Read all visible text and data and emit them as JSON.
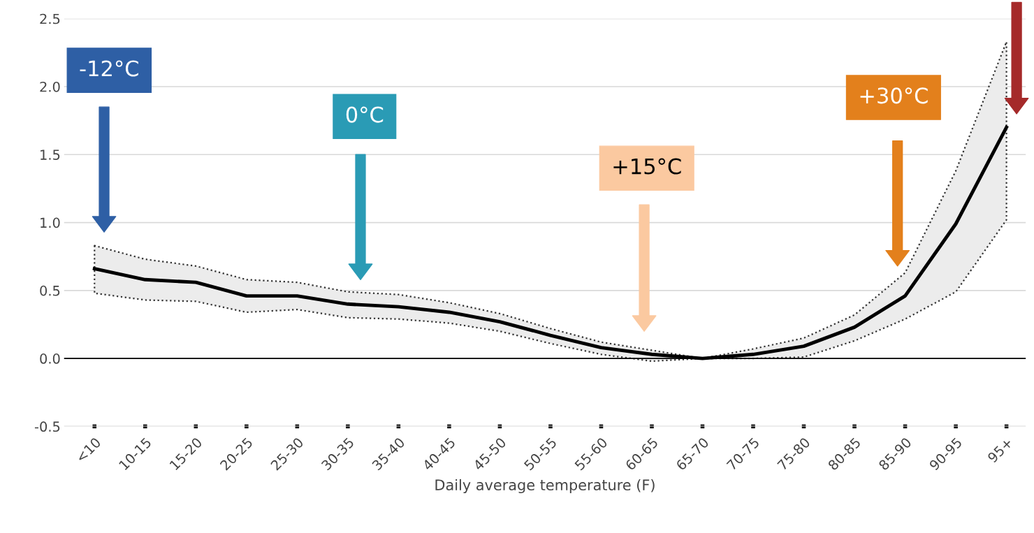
{
  "chart_data": {
    "type": "line",
    "xlabel": "Daily average temperature (F)",
    "categories": [
      "<10",
      "10-15",
      "15-20",
      "20-25",
      "25-30",
      "30-35",
      "35-40",
      "40-45",
      "45-50",
      "50-55",
      "55-60",
      "60-65",
      "65-70",
      "70-75",
      "75-80",
      "80-85",
      "85-90",
      "90-95",
      "95+"
    ],
    "series": [
      {
        "color": "#000000",
        "values": [
          0.66,
          0.58,
          0.56,
          0.46,
          0.46,
          0.4,
          0.38,
          0.34,
          0.27,
          0.17,
          0.08,
          0.03,
          0.0,
          0.03,
          0.09,
          0.23,
          0.46,
          0.99,
          1.7
        ],
        "lower": [
          0.48,
          0.43,
          0.42,
          0.34,
          0.36,
          0.3,
          0.29,
          0.26,
          0.2,
          0.11,
          0.03,
          -0.02,
          0.0,
          0.0,
          0.01,
          0.13,
          0.29,
          0.49,
          1.02
        ],
        "upper": [
          0.83,
          0.73,
          0.68,
          0.58,
          0.56,
          0.49,
          0.47,
          0.41,
          0.33,
          0.22,
          0.12,
          0.06,
          0.0,
          0.07,
          0.15,
          0.32,
          0.63,
          1.38,
          2.33
        ]
      }
    ],
    "ylim": [
      -0.5,
      2.5
    ],
    "yticks": [
      {
        "value": -0.5,
        "label": "-0.5"
      },
      {
        "value": 0,
        "label": "0.0"
      },
      {
        "value": 0.5,
        "label": "0.5"
      },
      {
        "value": 1.0,
        "label": "1.0"
      },
      {
        "value": 1.5,
        "label": "1.5"
      },
      {
        "value": 2.0,
        "label": "2.0"
      },
      {
        "value": 2.5,
        "label": "2.5"
      }
    ],
    "grid": "y",
    "marker": "none",
    "line_style": "solid",
    "ref_lines": [
      {
        "axis": "y",
        "value": 0,
        "color": "#000000"
      }
    ],
    "annotations": [
      "-12°C",
      "0°C",
      "+15°C",
      "+30°C"
    ]
  }
}
